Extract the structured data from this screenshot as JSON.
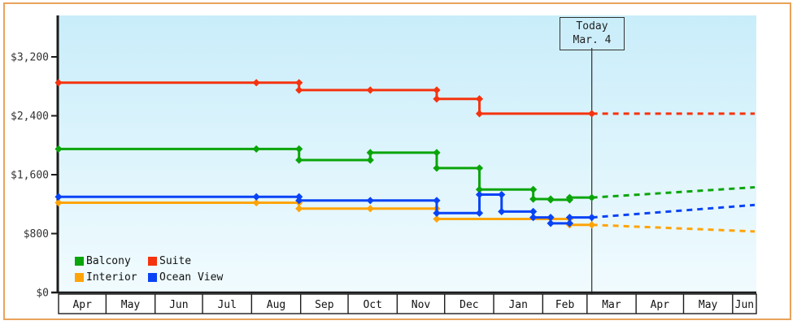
{
  "colors": {
    "frame_border": "#e9a35a",
    "plot_bg_top": "#c9edfa",
    "plot_bg_bottom": "#f1fbfe",
    "axis": "#1c1c1c",
    "tick_text": "#333333",
    "month_text": "#111111",
    "today_line": "#3c3c3c"
  },
  "legend": {
    "items": [
      {
        "label": "Balcony",
        "color": "#0aa50a"
      },
      {
        "label": "Suite",
        "color": "#f5330f"
      },
      {
        "label": "Interior",
        "color": "#ffa408"
      },
      {
        "label": "Ocean View",
        "color": "#0943f5"
      }
    ]
  },
  "chart_data": {
    "type": "line",
    "title": "",
    "ylabel": "",
    "xlabel": "",
    "grid": false,
    "legend_position": "bottom-left-inside",
    "y_axis": {
      "tick_values": [
        0,
        800,
        1600,
        2400,
        3200
      ],
      "tick_labels": [
        "$0",
        "$800",
        "$1,600",
        "$2,400",
        "$3,200"
      ],
      "range": [
        0,
        3530
      ]
    },
    "x_axis": {
      "months": [
        "Apr",
        "May",
        "Jun",
        "Jul",
        "Aug",
        "Sep",
        "Oct",
        "Nov",
        "Dec",
        "Jan",
        "Feb",
        "Mar",
        "Apr",
        "May",
        "Jun"
      ],
      "month_days": [
        30,
        31,
        30,
        31,
        31,
        30,
        31,
        30,
        31,
        31,
        28,
        31,
        30,
        31,
        15
      ],
      "total_days": 441
    },
    "today": {
      "title": "Today",
      "date": "Mar. 4",
      "day": 337
    },
    "forecast_end_day": 440,
    "series": [
      {
        "name": "Suite",
        "color": "#f5330f",
        "points": [
          [
            0,
            2849
          ],
          [
            125,
            2849
          ],
          [
            152,
            2749
          ],
          [
            197,
            2749
          ],
          [
            239,
            2629
          ],
          [
            266,
            2429
          ],
          [
            337,
            2429
          ]
        ],
        "forecast_price": 2429
      },
      {
        "name": "Balcony",
        "color": "#0aa50a",
        "points": [
          [
            0,
            1949
          ],
          [
            125,
            1949
          ],
          [
            152,
            1799
          ],
          [
            197,
            1899
          ],
          [
            239,
            1689
          ],
          [
            266,
            1399
          ],
          [
            300,
            1269
          ],
          [
            311,
            1259
          ],
          [
            323,
            1289
          ],
          [
            337,
            1289
          ]
        ],
        "forecast_price": 1429
      },
      {
        "name": "Interior",
        "color": "#ffa408",
        "points": [
          [
            0,
            1219
          ],
          [
            125,
            1219
          ],
          [
            152,
            1139
          ],
          [
            197,
            1139
          ],
          [
            239,
            999
          ],
          [
            323,
            919
          ],
          [
            337,
            919
          ]
        ],
        "forecast_price": 829
      },
      {
        "name": "Ocean View",
        "color": "#0943f5",
        "points": [
          [
            0,
            1299
          ],
          [
            125,
            1299
          ],
          [
            152,
            1249
          ],
          [
            197,
            1249
          ],
          [
            239,
            1079
          ],
          [
            266,
            1329
          ],
          [
            280,
            1099
          ],
          [
            300,
            1019
          ],
          [
            311,
            939
          ],
          [
            323,
            1019
          ],
          [
            337,
            1019
          ]
        ],
        "forecast_price": 1189
      }
    ]
  }
}
